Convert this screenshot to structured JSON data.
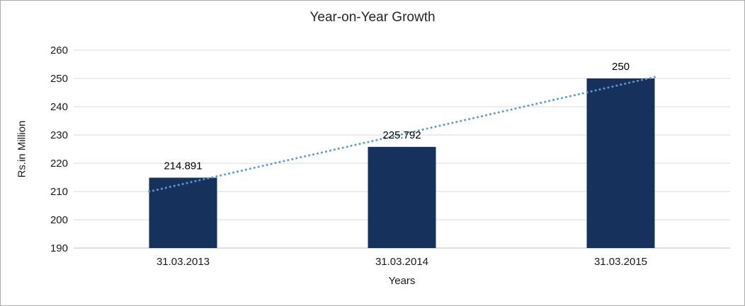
{
  "chart_data": {
    "type": "bar",
    "title": "Year-on-Year Growth",
    "xlabel": "Years",
    "ylabel": "Rs.in Million",
    "categories": [
      "31.03.2013",
      "31.03.2014",
      "31.03.2015"
    ],
    "values": [
      214.891,
      225.792,
      250
    ],
    "data_labels": [
      "214.891",
      "225.792",
      "250"
    ],
    "ylim": [
      190,
      260
    ],
    "ytick_step": 10,
    "yticks": [
      190,
      200,
      210,
      220,
      230,
      240,
      250,
      260
    ],
    "grid": true,
    "legend": false,
    "trendline": {
      "type": "linear",
      "style": "dotted"
    },
    "colors": {
      "bar": "#16325C",
      "trendline": "#5B9BD5",
      "gridline": "#D9D9D9",
      "axis_line": "#BFBFBF",
      "text": "#1A1A1A",
      "data_label": "#000000"
    }
  }
}
